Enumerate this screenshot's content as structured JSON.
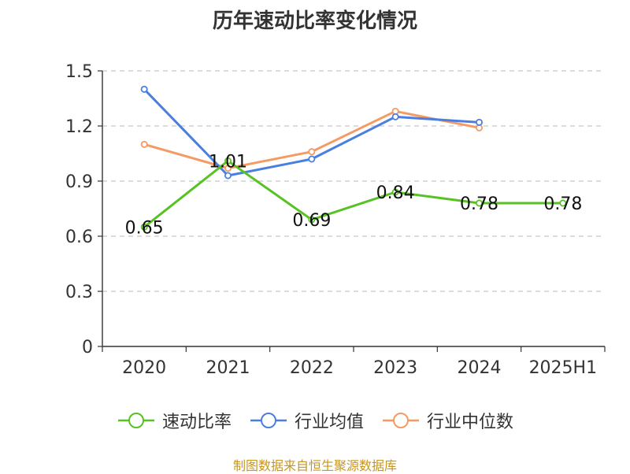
{
  "source_text": "制图数据来自恒生聚源数据库",
  "source_color": "#c8961e",
  "chart_data": {
    "type": "line",
    "title": "历年速动比率变化情况",
    "categories": [
      "2020",
      "2021",
      "2022",
      "2023",
      "2024",
      "2025H1"
    ],
    "ylim": [
      0,
      1.5
    ],
    "yticks": [
      "0",
      "0.3",
      "0.6",
      "0.9",
      "1.2",
      "1.5"
    ],
    "grid": true,
    "legend_position": "bottom",
    "series": [
      {
        "name": "速动比率",
        "color": "#58c224",
        "values": [
          0.65,
          1.01,
          0.69,
          0.84,
          0.78,
          0.78
        ],
        "labels": [
          "0.65",
          "1.01",
          "0.69",
          "0.84",
          "0.78",
          "0.78"
        ]
      },
      {
        "name": "行业均值",
        "color": "#4a7fe0",
        "values": [
          1.4,
          0.93,
          1.02,
          1.25,
          1.22,
          null
        ]
      },
      {
        "name": "行业中位数",
        "color": "#f59a64",
        "values": [
          1.1,
          0.97,
          1.06,
          1.28,
          1.19,
          null
        ]
      }
    ]
  }
}
